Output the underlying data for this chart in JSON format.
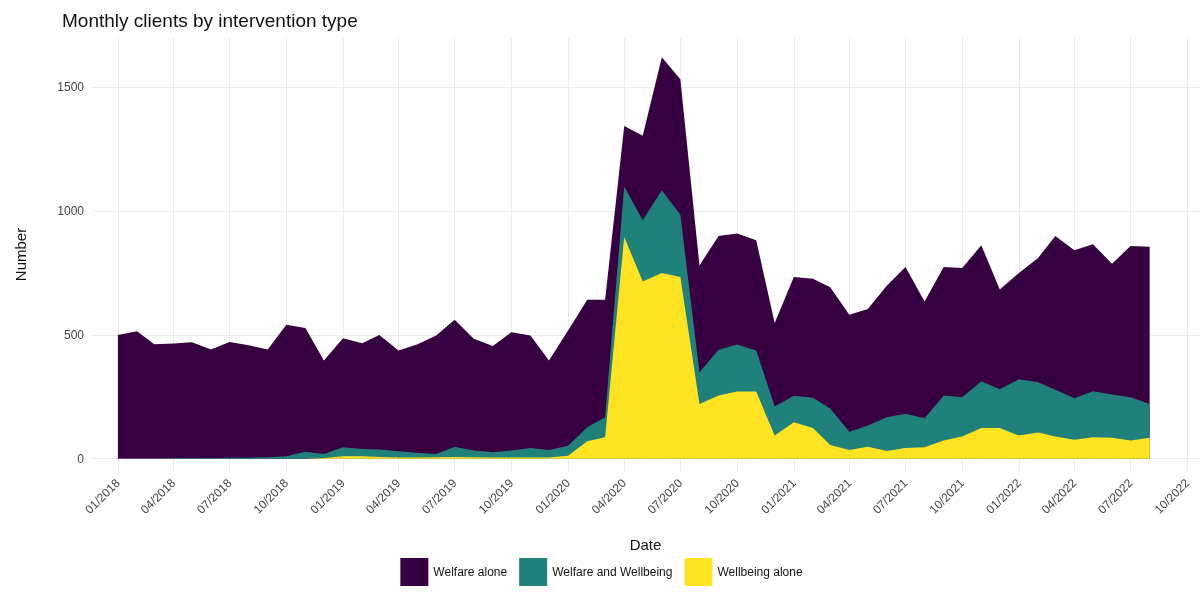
{
  "chart_data": {
    "type": "area",
    "title": "Monthly clients by intervention type",
    "xlabel": "Date",
    "ylabel": "Number",
    "stacked": true,
    "grid": true,
    "legend": "bottom",
    "x": [
      "2018-01",
      "2018-02",
      "2018-03",
      "2018-04",
      "2018-05",
      "2018-06",
      "2018-07",
      "2018-08",
      "2018-09",
      "2018-10",
      "2018-11",
      "2018-12",
      "2019-01",
      "2019-02",
      "2019-03",
      "2019-04",
      "2019-05",
      "2019-06",
      "2019-07",
      "2019-08",
      "2019-09",
      "2019-10",
      "2019-11",
      "2019-12",
      "2020-01",
      "2020-02",
      "2020-03",
      "2020-04",
      "2020-05",
      "2020-06",
      "2020-07",
      "2020-08",
      "2020-09",
      "2020-10",
      "2020-11",
      "2020-12",
      "2021-01",
      "2021-02",
      "2021-03",
      "2021-04",
      "2021-05",
      "2021-06",
      "2021-07",
      "2021-08",
      "2021-09",
      "2021-10",
      "2021-11",
      "2021-12",
      "2022-01",
      "2022-02",
      "2022-03",
      "2022-04",
      "2022-05",
      "2022-06",
      "2022-07",
      "2022-08"
    ],
    "xlim": [
      "2017-11-20",
      "2022-10-20"
    ],
    "xticks": [
      {
        "value": "2018-01",
        "label": "01/2018"
      },
      {
        "value": "2018-04",
        "label": "04/2018"
      },
      {
        "value": "2018-07",
        "label": "07/2018"
      },
      {
        "value": "2018-10",
        "label": "10/2018"
      },
      {
        "value": "2019-01",
        "label": "01/2019"
      },
      {
        "value": "2019-04",
        "label": "04/2019"
      },
      {
        "value": "2019-07",
        "label": "07/2019"
      },
      {
        "value": "2019-10",
        "label": "10/2019"
      },
      {
        "value": "2020-01",
        "label": "01/2020"
      },
      {
        "value": "2020-04",
        "label": "04/2020"
      },
      {
        "value": "2020-07",
        "label": "07/2020"
      },
      {
        "value": "2020-10",
        "label": "10/2020"
      },
      {
        "value": "2021-01",
        "label": "01/2021"
      },
      {
        "value": "2021-04",
        "label": "04/2021"
      },
      {
        "value": "2021-07",
        "label": "07/2021"
      },
      {
        "value": "2021-10",
        "label": "10/2021"
      },
      {
        "value": "2022-01",
        "label": "01/2022"
      },
      {
        "value": "2022-04",
        "label": "04/2022"
      },
      {
        "value": "2022-07",
        "label": "07/2022"
      },
      {
        "value": "2022-10",
        "label": "10/2022"
      }
    ],
    "ylim": [
      -50,
      1700
    ],
    "yticks": [
      0,
      500,
      1000,
      1500
    ],
    "series": [
      {
        "name": "Wellbeing alone",
        "color": "#fde321",
        "values": [
          0,
          0,
          0,
          0,
          0,
          0,
          0,
          0,
          0,
          0,
          0,
          3,
          10,
          10,
          7,
          5,
          5,
          6,
          7,
          6,
          5,
          5,
          5,
          5,
          12,
          70,
          86,
          896,
          716,
          750,
          734,
          221,
          255,
          271,
          271,
          93,
          147,
          124,
          55,
          35,
          48,
          31,
          43,
          46,
          73,
          89,
          124,
          124,
          93,
          106,
          89,
          76,
          86,
          84,
          73,
          84
        ]
      },
      {
        "name": "Welfare and Wellbeing",
        "color": "#20817b",
        "values": [
          0,
          1,
          1,
          2,
          3,
          2,
          4,
          4,
          6,
          10,
          28,
          16,
          36,
          29,
          30,
          25,
          19,
          13,
          41,
          27,
          21,
          28,
          38,
          30,
          40,
          57,
          81,
          204,
          247,
          335,
          252,
          128,
          185,
          190,
          166,
          118,
          107,
          122,
          148,
          74,
          86,
          136,
          138,
          117,
          182,
          159,
          189,
          156,
          228,
          203,
          189,
          168,
          186,
          175,
          175,
          137
        ]
      },
      {
        "name": "Welfare alone",
        "color": "#370040",
        "values": [
          500,
          514,
          461,
          463,
          467,
          439,
          467,
          454,
          435,
          531,
          500,
          378,
          441,
          427,
          463,
          407,
          437,
          479,
          513,
          451,
          429,
          478,
          455,
          362,
          466,
          515,
          475,
          244,
          342,
          537,
          547,
          432,
          460,
          449,
          446,
          337,
          480,
          481,
          490,
          472,
          471,
          533,
          593,
          472,
          519,
          522,
          549,
          404,
          429,
          502,
          622,
          598,
          594,
          529,
          611,
          635
        ]
      }
    ]
  }
}
